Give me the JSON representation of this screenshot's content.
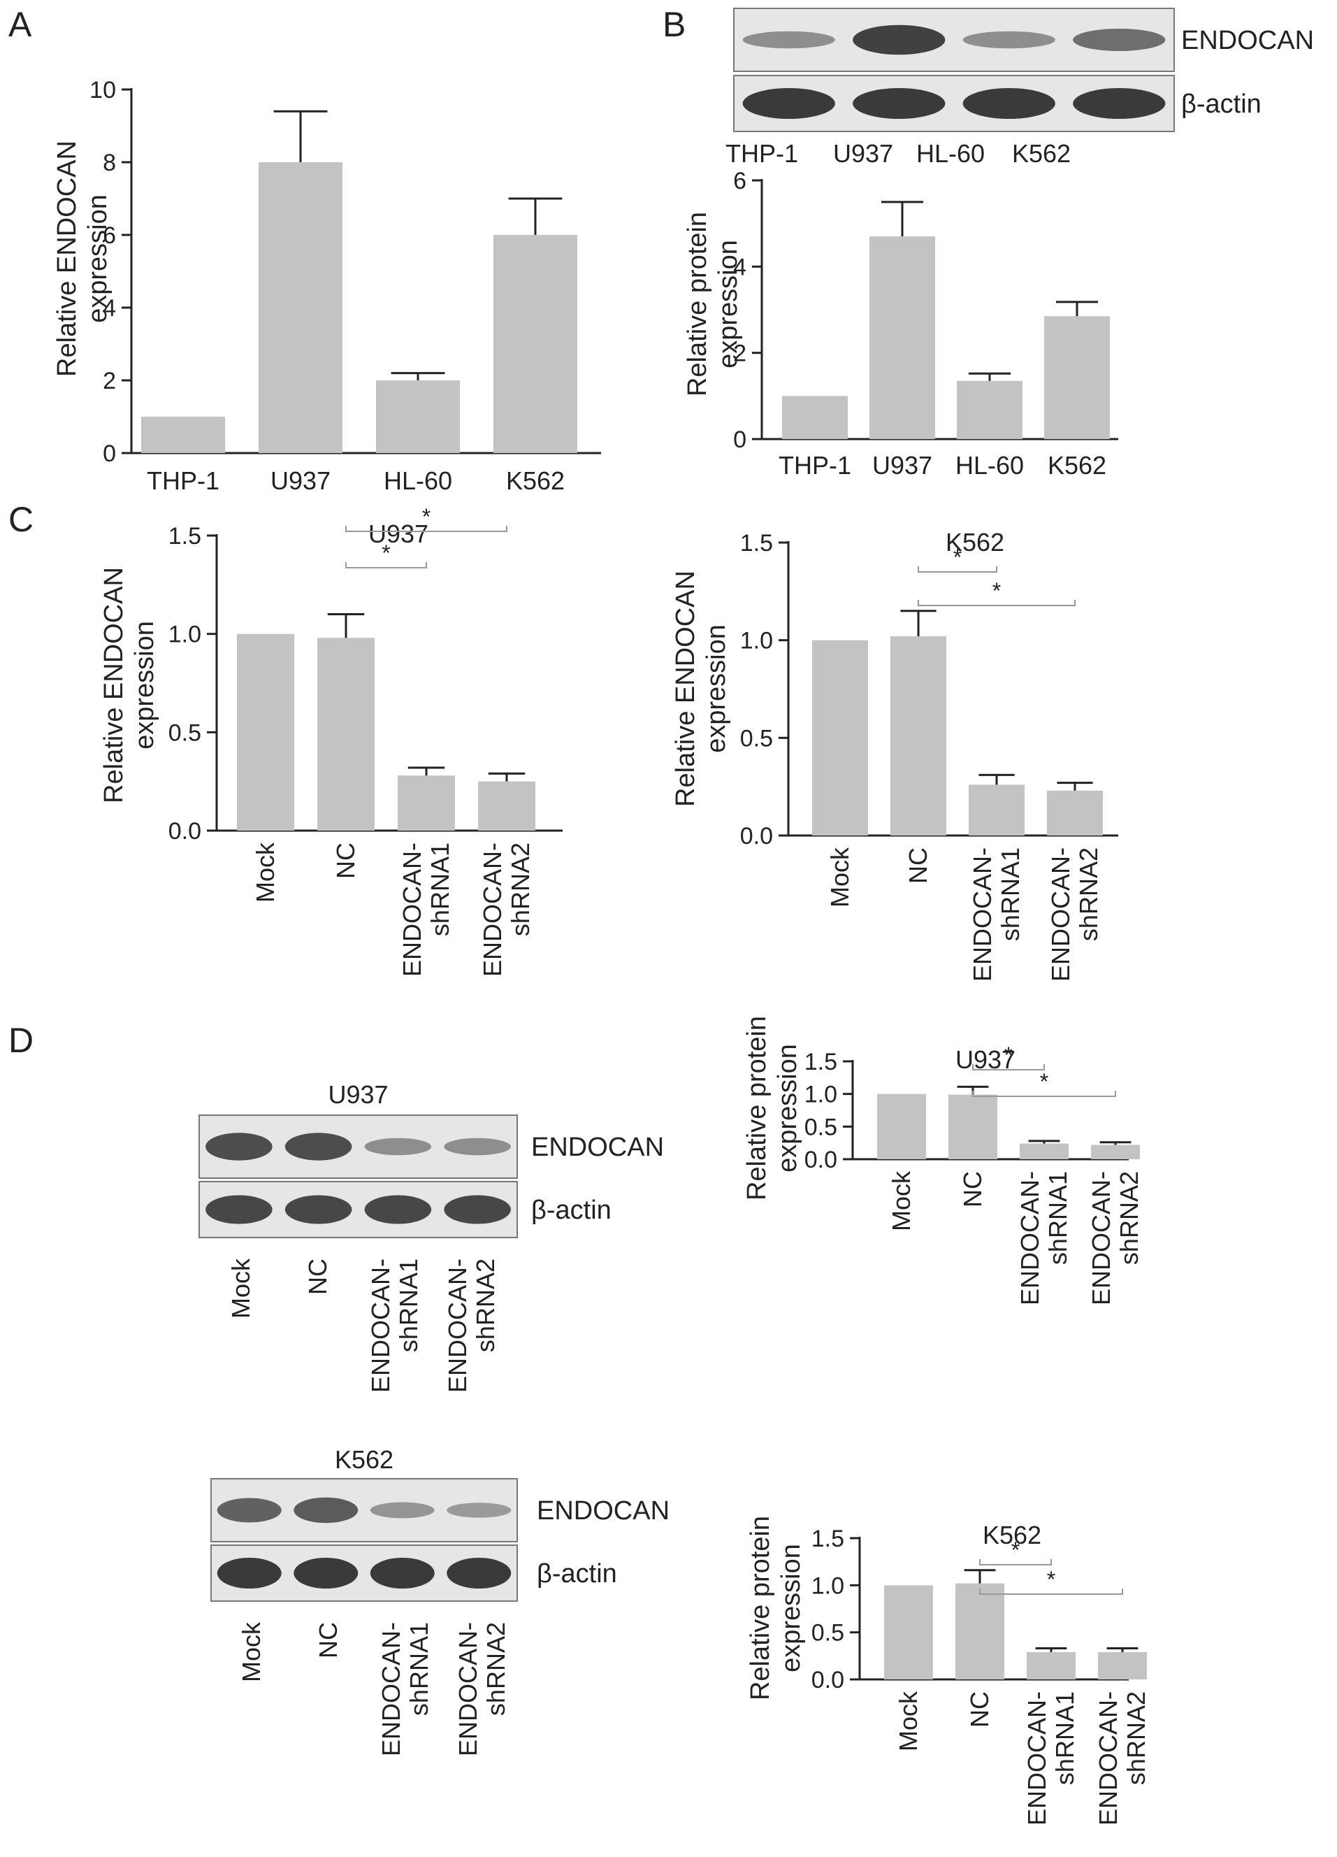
{
  "panel_letters": [
    "A",
    "B",
    "C",
    "D"
  ],
  "colors": {
    "bar": "#c3c3c3",
    "axis": "#222222",
    "blot_bg": "#e6e6e6",
    "band": "#3a3a3a"
  },
  "blots": [
    {
      "id": "blotB",
      "title": "",
      "bands": [
        "ENDOCAN",
        "β-actin"
      ],
      "lanes": [
        "THP-1",
        "U937",
        "HL-60",
        "K562"
      ],
      "intensity": [
        [
          0.35,
          0.95,
          0.35,
          0.6
        ],
        [
          1,
          1,
          1,
          1
        ]
      ]
    },
    {
      "id": "blotD1",
      "title": "U937",
      "bands": [
        "ENDOCAN",
        "β-actin"
      ],
      "lanes": [
        "Mock",
        "NC",
        "ENDOCAN-\nshRNA1",
        "ENDOCAN-\nshRNA2"
      ],
      "intensity": [
        [
          0.85,
          0.85,
          0.35,
          0.35
        ],
        [
          0.9,
          0.9,
          0.9,
          0.9
        ]
      ]
    },
    {
      "id": "blotD2",
      "title": "K562",
      "bands": [
        "ENDOCAN",
        "β-actin"
      ],
      "lanes": [
        "Mock",
        "NC",
        "ENDOCAN-\nshRNA1",
        "ENDOCAN-\nshRNA2"
      ],
      "intensity": [
        [
          0.7,
          0.75,
          0.3,
          0.25
        ],
        [
          1,
          1,
          1,
          1
        ]
      ]
    }
  ],
  "chart_data": [
    {
      "id": "A",
      "type": "bar",
      "title": "",
      "ylabel": "Relative ENDOCAN\nexpression",
      "categories": [
        "THP-1",
        "U937",
        "HL-60",
        "K562"
      ],
      "values": [
        1,
        8,
        2,
        6
      ],
      "errors": [
        0,
        1.4,
        0.2,
        1.0
      ],
      "ylim": [
        0,
        10
      ],
      "yticks": [
        "0",
        "2",
        "4",
        "6",
        "8",
        "10"
      ],
      "rotate_labels": false,
      "sig": []
    },
    {
      "id": "B",
      "type": "bar",
      "title": "",
      "ylabel": "Relative protein\nexpression",
      "categories": [
        "THP-1",
        "U937",
        "HL-60",
        "K562"
      ],
      "values": [
        1,
        4.7,
        1.35,
        2.85
      ],
      "errors": [
        0,
        0.8,
        0.17,
        0.33
      ],
      "ylim": [
        0,
        6
      ],
      "yticks": [
        "0",
        "2",
        "4",
        "6"
      ],
      "rotate_labels": false,
      "sig": []
    },
    {
      "id": "C1",
      "type": "bar",
      "title": "U937",
      "ylabel": "Relative ENDOCAN\nexpression",
      "categories": [
        "Mock",
        "NC",
        "ENDOCAN-\nshRNA1",
        "ENDOCAN-\nshRNA2"
      ],
      "values": [
        1.0,
        0.98,
        0.28,
        0.25
      ],
      "errors": [
        0,
        0.12,
        0.04,
        0.04
      ],
      "ylim": [
        0,
        1.5
      ],
      "yticks": [
        "0.0",
        "0.5",
        "1.0",
        "1.5"
      ],
      "rotate_labels": true,
      "sig": [
        {
          "from": 1,
          "to": 2,
          "label": "*"
        },
        {
          "from": 1,
          "to": 3,
          "label": "*"
        }
      ]
    },
    {
      "id": "C2",
      "type": "bar",
      "title": "K562",
      "ylabel": "Relative ENDOCAN\nexpression",
      "categories": [
        "Mock",
        "NC",
        "ENDOCAN-\nshRNA1",
        "ENDOCAN-\nshRNA2"
      ],
      "values": [
        1.0,
        1.02,
        0.26,
        0.23
      ],
      "errors": [
        0,
        0.13,
        0.05,
        0.04
      ],
      "ylim": [
        0,
        1.5
      ],
      "yticks": [
        "0.0",
        "0.5",
        "1.0",
        "1.5"
      ],
      "rotate_labels": true,
      "sig": [
        {
          "from": 1,
          "to": 2,
          "label": "*"
        },
        {
          "from": 1,
          "to": 3,
          "label": "*"
        }
      ]
    },
    {
      "id": "D1",
      "type": "bar",
      "title": "U937",
      "ylabel": "Relative protein\nexpression",
      "categories": [
        "Mock",
        "NC",
        "ENDOCAN-\nshRNA1",
        "ENDOCAN-\nshRNA2"
      ],
      "values": [
        1.0,
        0.99,
        0.24,
        0.22
      ],
      "errors": [
        0,
        0.12,
        0.04,
        0.04
      ],
      "ylim": [
        0,
        1.5
      ],
      "yticks": [
        "0.0",
        "0.5",
        "1.0",
        "1.5"
      ],
      "rotate_labels": true,
      "sig": [
        {
          "from": 1,
          "to": 2,
          "label": "*"
        },
        {
          "from": 1,
          "to": 3,
          "label": "*"
        }
      ]
    },
    {
      "id": "D2",
      "type": "bar",
      "title": "K562",
      "ylabel": "Relative protein\nexpression",
      "categories": [
        "Mock",
        "NC",
        "ENDOCAN-\nshRNA1",
        "ENDOCAN-\nshRNA2"
      ],
      "values": [
        1.0,
        1.02,
        0.29,
        0.29
      ],
      "errors": [
        0,
        0.14,
        0.04,
        0.04
      ],
      "ylim": [
        0,
        1.5
      ],
      "yticks": [
        "0.0",
        "0.5",
        "1.0",
        "1.5"
      ],
      "rotate_labels": true,
      "sig": [
        {
          "from": 1,
          "to": 2,
          "label": "*"
        },
        {
          "from": 1,
          "to": 3,
          "label": "*"
        }
      ]
    }
  ]
}
